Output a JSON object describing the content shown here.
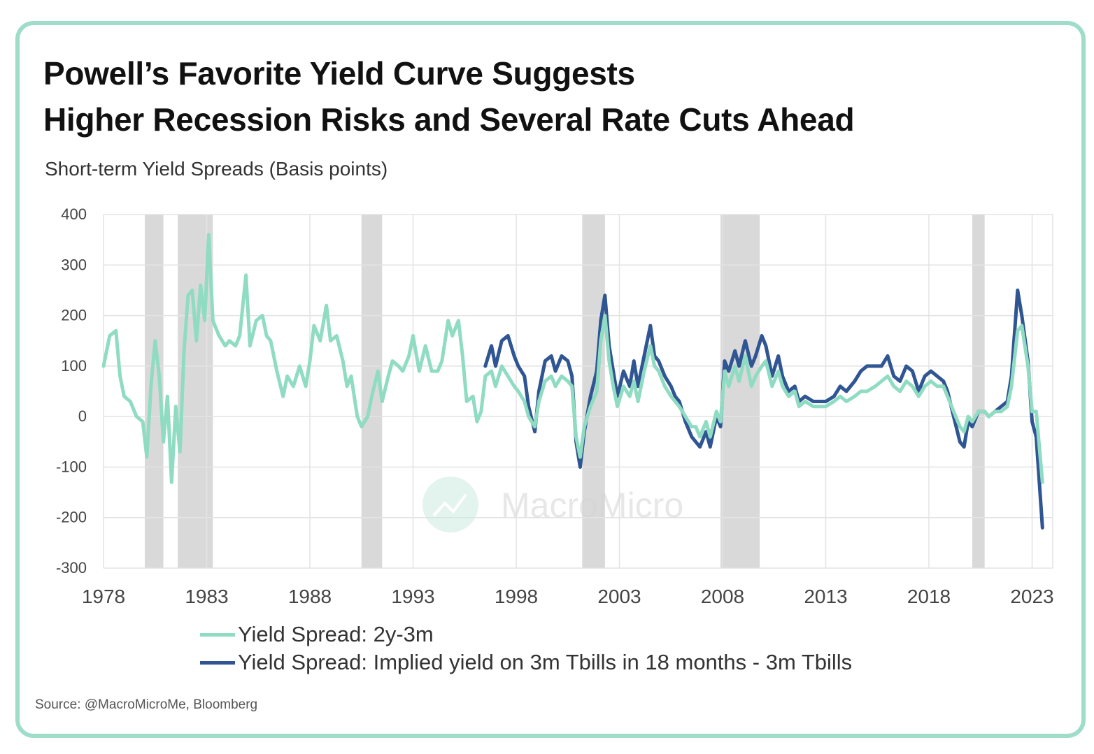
{
  "title_line1": "Powell’s Favorite Yield Curve Suggests",
  "title_line2": "Higher Recession Risks and Several Rate Cuts Ahead",
  "subtitle": "Short-term Yield Spreads (Basis points)",
  "source": "Source: @MacroMicroMe, Bloomberg",
  "watermark": "MacroMicro",
  "colors": {
    "frame": "#9fdcc9",
    "series1": "#8fdcc2",
    "series2": "#2f5593",
    "recession": "#d9d9d9",
    "grid": "#e3e3e3"
  },
  "chart_data": {
    "type": "line",
    "ylim": [
      -300,
      400
    ],
    "xlim": [
      1978,
      2024
    ],
    "y_ticks": [
      400,
      300,
      200,
      100,
      0,
      -100,
      -200,
      -300
    ],
    "x_ticks": [
      1978,
      1983,
      1988,
      1993,
      1998,
      2003,
      2008,
      2013,
      2018,
      2023
    ],
    "grid": true,
    "legend_position": "bottom",
    "recessions": [
      [
        1980.0,
        1980.9
      ],
      [
        1981.6,
        1983.3
      ],
      [
        1990.5,
        1991.5
      ],
      [
        2001.2,
        2002.3
      ],
      [
        2007.9,
        2009.8
      ],
      [
        2020.1,
        2020.7
      ]
    ],
    "series": [
      {
        "name": "Yield Spread: 2y-3m",
        "color": "#8fdcc2",
        "points": [
          [
            1978.0,
            100
          ],
          [
            1978.3,
            160
          ],
          [
            1978.6,
            170
          ],
          [
            1978.8,
            80
          ],
          [
            1979.0,
            40
          ],
          [
            1979.3,
            30
          ],
          [
            1979.6,
            0
          ],
          [
            1979.9,
            -10
          ],
          [
            1980.1,
            -80
          ],
          [
            1980.3,
            60
          ],
          [
            1980.5,
            150
          ],
          [
            1980.7,
            80
          ],
          [
            1980.9,
            -50
          ],
          [
            1981.1,
            40
          ],
          [
            1981.3,
            -130
          ],
          [
            1981.5,
            20
          ],
          [
            1981.7,
            -70
          ],
          [
            1981.9,
            130
          ],
          [
            1982.1,
            240
          ],
          [
            1982.3,
            250
          ],
          [
            1982.5,
            150
          ],
          [
            1982.7,
            260
          ],
          [
            1982.9,
            190
          ],
          [
            1983.1,
            360
          ],
          [
            1983.3,
            190
          ],
          [
            1983.6,
            160
          ],
          [
            1983.9,
            140
          ],
          [
            1984.1,
            150
          ],
          [
            1984.4,
            140
          ],
          [
            1984.6,
            160
          ],
          [
            1984.9,
            280
          ],
          [
            1985.1,
            140
          ],
          [
            1985.4,
            190
          ],
          [
            1985.7,
            200
          ],
          [
            1985.9,
            160
          ],
          [
            1986.1,
            150
          ],
          [
            1986.4,
            90
          ],
          [
            1986.7,
            40
          ],
          [
            1986.9,
            80
          ],
          [
            1987.2,
            60
          ],
          [
            1987.5,
            100
          ],
          [
            1987.8,
            60
          ],
          [
            1988.0,
            110
          ],
          [
            1988.2,
            180
          ],
          [
            1988.5,
            150
          ],
          [
            1988.8,
            220
          ],
          [
            1989.0,
            150
          ],
          [
            1989.3,
            160
          ],
          [
            1989.6,
            110
          ],
          [
            1989.8,
            60
          ],
          [
            1990.0,
            80
          ],
          [
            1990.3,
            0
          ],
          [
            1990.5,
            -20
          ],
          [
            1990.8,
            0
          ],
          [
            1991.0,
            40
          ],
          [
            1991.3,
            90
          ],
          [
            1991.5,
            30
          ],
          [
            1991.8,
            80
          ],
          [
            1992.0,
            110
          ],
          [
            1992.3,
            100
          ],
          [
            1992.5,
            90
          ],
          [
            1992.8,
            120
          ],
          [
            1993.0,
            160
          ],
          [
            1993.3,
            90
          ],
          [
            1993.6,
            140
          ],
          [
            1993.9,
            90
          ],
          [
            1994.2,
            90
          ],
          [
            1994.4,
            110
          ],
          [
            1994.7,
            190
          ],
          [
            1994.9,
            160
          ],
          [
            1995.2,
            190
          ],
          [
            1995.4,
            120
          ],
          [
            1995.6,
            30
          ],
          [
            1995.9,
            40
          ],
          [
            1996.1,
            -10
          ],
          [
            1996.3,
            10
          ],
          [
            1996.5,
            80
          ],
          [
            1996.8,
            90
          ],
          [
            1997.0,
            60
          ],
          [
            1997.3,
            100
          ],
          [
            1997.6,
            80
          ],
          [
            1997.9,
            60
          ],
          [
            1998.1,
            50
          ],
          [
            1998.4,
            30
          ],
          [
            1998.6,
            0
          ],
          [
            1998.9,
            -20
          ],
          [
            1999.1,
            30
          ],
          [
            1999.4,
            70
          ],
          [
            1999.7,
            80
          ],
          [
            1999.9,
            60
          ],
          [
            2000.2,
            80
          ],
          [
            2000.5,
            70
          ],
          [
            2000.7,
            60
          ],
          [
            2000.9,
            -40
          ],
          [
            2001.1,
            -80
          ],
          [
            2001.3,
            -20
          ],
          [
            2001.6,
            20
          ],
          [
            2001.9,
            50
          ],
          [
            2002.1,
            150
          ],
          [
            2002.3,
            200
          ],
          [
            2002.5,
            110
          ],
          [
            2002.7,
            60
          ],
          [
            2002.9,
            20
          ],
          [
            2003.2,
            60
          ],
          [
            2003.5,
            40
          ],
          [
            2003.7,
            70
          ],
          [
            2003.9,
            30
          ],
          [
            2004.2,
            90
          ],
          [
            2004.5,
            140
          ],
          [
            2004.7,
            100
          ],
          [
            2004.9,
            90
          ],
          [
            2005.2,
            60
          ],
          [
            2005.5,
            40
          ],
          [
            2005.7,
            30
          ],
          [
            2005.9,
            20
          ],
          [
            2006.2,
            0
          ],
          [
            2006.5,
            -20
          ],
          [
            2006.7,
            -20
          ],
          [
            2006.9,
            -40
          ],
          [
            2007.2,
            -10
          ],
          [
            2007.4,
            -40
          ],
          [
            2007.7,
            10
          ],
          [
            2007.9,
            -10
          ],
          [
            2008.1,
            90
          ],
          [
            2008.3,
            60
          ],
          [
            2008.6,
            100
          ],
          [
            2008.8,
            70
          ],
          [
            2009.1,
            120
          ],
          [
            2009.4,
            60
          ],
          [
            2009.6,
            80
          ],
          [
            2009.9,
            100
          ],
          [
            2010.1,
            110
          ],
          [
            2010.4,
            60
          ],
          [
            2010.7,
            90
          ],
          [
            2010.9,
            60
          ],
          [
            2011.2,
            40
          ],
          [
            2011.5,
            50
          ],
          [
            2011.7,
            20
          ],
          [
            2012.0,
            30
          ],
          [
            2012.4,
            20
          ],
          [
            2012.7,
            20
          ],
          [
            2013.0,
            20
          ],
          [
            2013.4,
            30
          ],
          [
            2013.7,
            40
          ],
          [
            2014.0,
            30
          ],
          [
            2014.4,
            40
          ],
          [
            2014.7,
            50
          ],
          [
            2015.0,
            50
          ],
          [
            2015.4,
            60
          ],
          [
            2015.7,
            70
          ],
          [
            2016.0,
            80
          ],
          [
            2016.3,
            60
          ],
          [
            2016.6,
            50
          ],
          [
            2016.9,
            70
          ],
          [
            2017.2,
            60
          ],
          [
            2017.5,
            40
          ],
          [
            2017.8,
            60
          ],
          [
            2018.1,
            70
          ],
          [
            2018.4,
            60
          ],
          [
            2018.7,
            60
          ],
          [
            2018.9,
            40
          ],
          [
            2019.2,
            10
          ],
          [
            2019.5,
            -20
          ],
          [
            2019.7,
            -30
          ],
          [
            2019.9,
            0
          ],
          [
            2020.1,
            -10
          ],
          [
            2020.4,
            10
          ],
          [
            2020.7,
            10
          ],
          [
            2020.9,
            0
          ],
          [
            2021.2,
            10
          ],
          [
            2021.5,
            10
          ],
          [
            2021.8,
            20
          ],
          [
            2022.0,
            60
          ],
          [
            2022.3,
            170
          ],
          [
            2022.5,
            180
          ],
          [
            2022.8,
            100
          ],
          [
            2023.0,
            10
          ],
          [
            2023.2,
            10
          ],
          [
            2023.5,
            -130
          ]
        ]
      },
      {
        "name": "Yield Spread: Implied yield on 3m Tbills in 18 months - 3m Tbills",
        "color": "#2f5593",
        "points": [
          [
            1996.5,
            100
          ],
          [
            1996.8,
            140
          ],
          [
            1997.0,
            100
          ],
          [
            1997.3,
            150
          ],
          [
            1997.6,
            160
          ],
          [
            1997.9,
            120
          ],
          [
            1998.1,
            100
          ],
          [
            1998.4,
            80
          ],
          [
            1998.6,
            20
          ],
          [
            1998.9,
            -30
          ],
          [
            1999.1,
            50
          ],
          [
            1999.4,
            110
          ],
          [
            1999.7,
            120
          ],
          [
            1999.9,
            90
          ],
          [
            2000.2,
            120
          ],
          [
            2000.5,
            110
          ],
          [
            2000.7,
            80
          ],
          [
            2000.9,
            -50
          ],
          [
            2001.1,
            -100
          ],
          [
            2001.3,
            -30
          ],
          [
            2001.6,
            40
          ],
          [
            2001.9,
            90
          ],
          [
            2002.1,
            190
          ],
          [
            2002.3,
            240
          ],
          [
            2002.5,
            140
          ],
          [
            2002.7,
            90
          ],
          [
            2002.9,
            40
          ],
          [
            2003.2,
            90
          ],
          [
            2003.5,
            60
          ],
          [
            2003.7,
            110
          ],
          [
            2003.9,
            60
          ],
          [
            2004.2,
            120
          ],
          [
            2004.5,
            180
          ],
          [
            2004.7,
            120
          ],
          [
            2004.9,
            110
          ],
          [
            2005.2,
            80
          ],
          [
            2005.5,
            60
          ],
          [
            2005.7,
            40
          ],
          [
            2005.9,
            30
          ],
          [
            2006.2,
            -10
          ],
          [
            2006.5,
            -40
          ],
          [
            2006.7,
            -50
          ],
          [
            2006.9,
            -60
          ],
          [
            2007.2,
            -30
          ],
          [
            2007.4,
            -60
          ],
          [
            2007.7,
            0
          ],
          [
            2007.9,
            -20
          ],
          [
            2008.1,
            110
          ],
          [
            2008.3,
            90
          ],
          [
            2008.6,
            130
          ],
          [
            2008.8,
            100
          ],
          [
            2009.1,
            150
          ],
          [
            2009.4,
            100
          ],
          [
            2009.6,
            120
          ],
          [
            2009.9,
            160
          ],
          [
            2010.1,
            140
          ],
          [
            2010.4,
            80
          ],
          [
            2010.7,
            120
          ],
          [
            2010.9,
            80
          ],
          [
            2011.2,
            50
          ],
          [
            2011.5,
            60
          ],
          [
            2011.7,
            30
          ],
          [
            2012.0,
            40
          ],
          [
            2012.4,
            30
          ],
          [
            2012.7,
            30
          ],
          [
            2013.0,
            30
          ],
          [
            2013.4,
            40
          ],
          [
            2013.7,
            60
          ],
          [
            2014.0,
            50
          ],
          [
            2014.4,
            70
          ],
          [
            2014.7,
            90
          ],
          [
            2015.0,
            100
          ],
          [
            2015.4,
            100
          ],
          [
            2015.7,
            100
          ],
          [
            2016.0,
            120
          ],
          [
            2016.3,
            80
          ],
          [
            2016.6,
            70
          ],
          [
            2016.9,
            100
          ],
          [
            2017.2,
            90
          ],
          [
            2017.5,
            50
          ],
          [
            2017.8,
            80
          ],
          [
            2018.1,
            90
          ],
          [
            2018.4,
            80
          ],
          [
            2018.7,
            70
          ],
          [
            2018.9,
            50
          ],
          [
            2019.2,
            0
          ],
          [
            2019.5,
            -50
          ],
          [
            2019.7,
            -60
          ],
          [
            2019.9,
            -10
          ],
          [
            2020.1,
            -20
          ],
          [
            2020.4,
            10
          ],
          [
            2020.7,
            10
          ],
          [
            2020.9,
            0
          ],
          [
            2021.2,
            10
          ],
          [
            2021.5,
            20
          ],
          [
            2021.8,
            30
          ],
          [
            2022.0,
            80
          ],
          [
            2022.3,
            250
          ],
          [
            2022.5,
            200
          ],
          [
            2022.8,
            110
          ],
          [
            2023.0,
            -10
          ],
          [
            2023.2,
            -40
          ],
          [
            2023.5,
            -220
          ]
        ]
      }
    ]
  }
}
